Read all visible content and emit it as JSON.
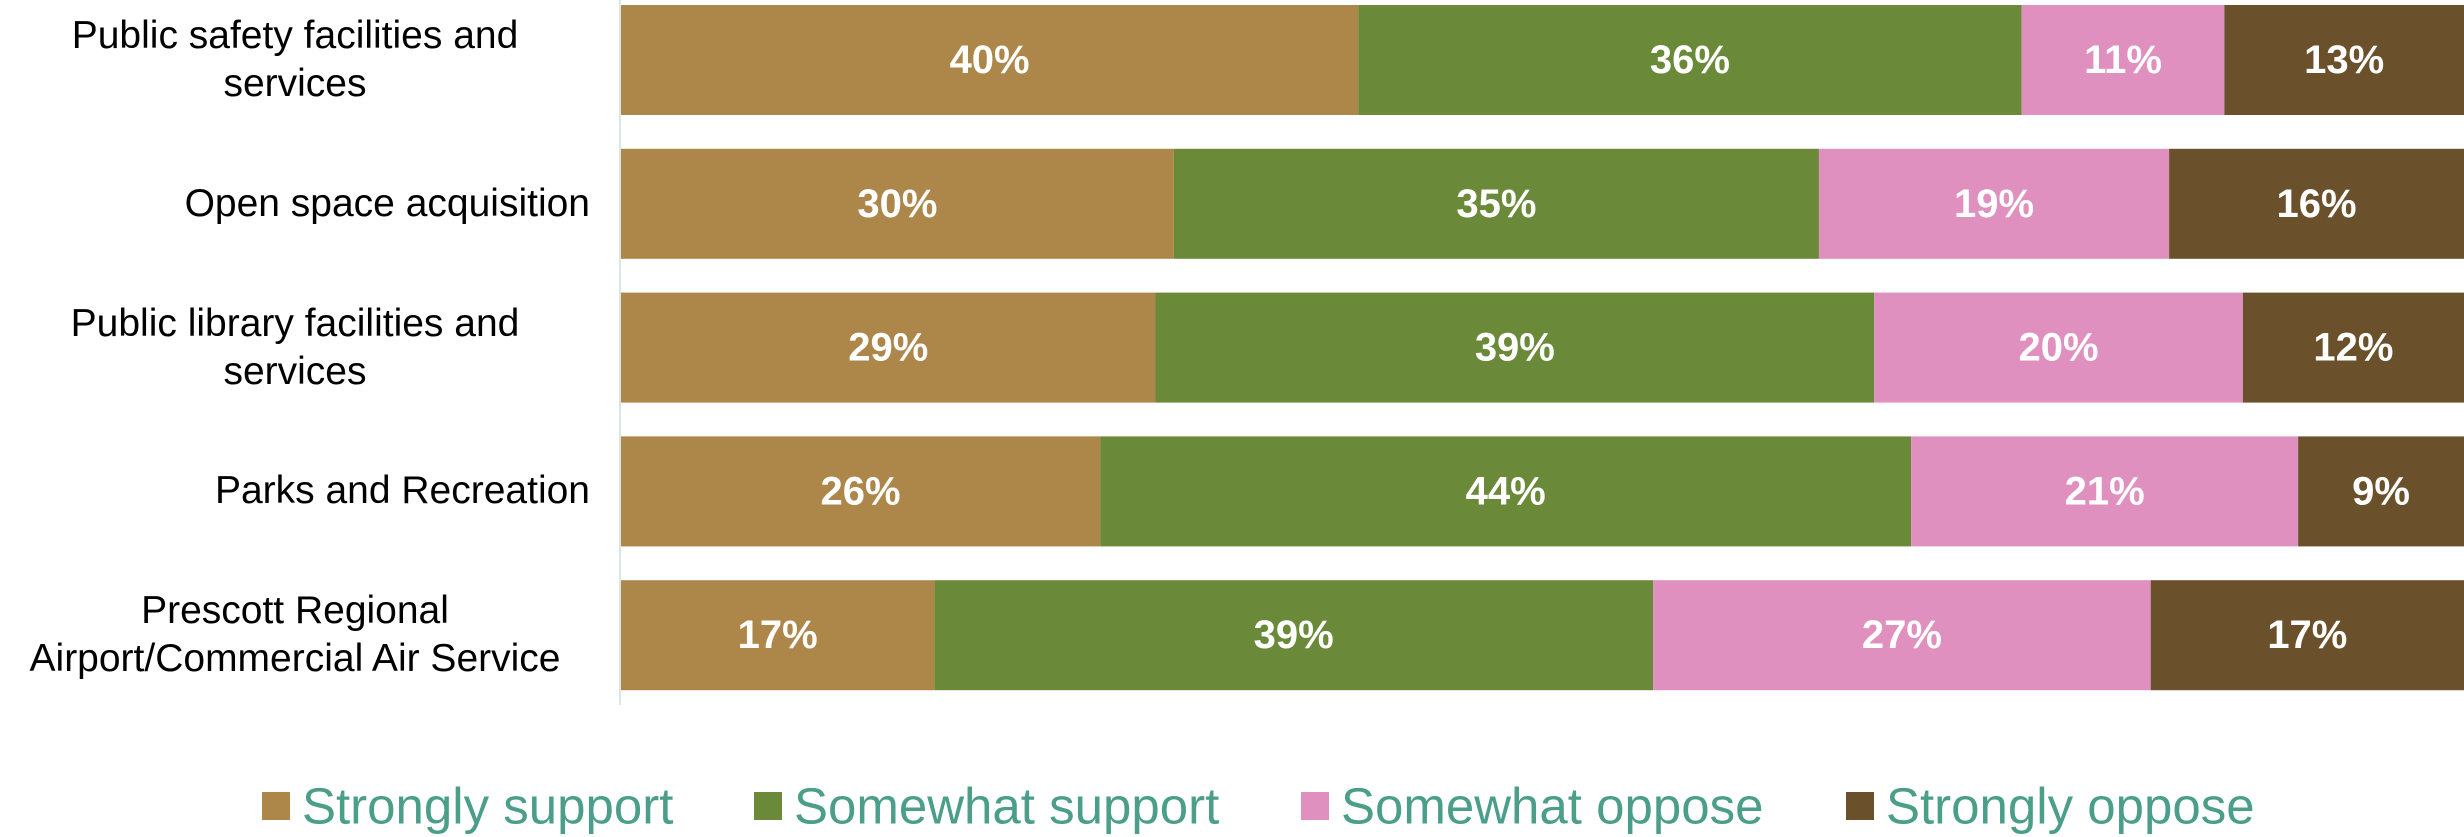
{
  "chart_data": {
    "type": "stacked-barh",
    "categories": [
      "Public safety facilities and services",
      "Open space acquisition",
      "Public library facilities and services",
      "Parks and Recreation",
      "Prescott Regional Airport/Commercial Air Service"
    ],
    "series": [
      {
        "name": "Strongly support",
        "color": "#ad864a",
        "values": [
          40,
          30,
          29,
          26,
          17
        ],
        "value_labels": [
          "40%",
          "30%",
          "29%",
          "26%",
          "17%"
        ]
      },
      {
        "name": "Somewhat support",
        "color": "#6a8a3a",
        "values": [
          36,
          35,
          39,
          44,
          39
        ],
        "value_labels": [
          "36%",
          "35%",
          "39%",
          "44%",
          "39%"
        ]
      },
      {
        "name": "Somewhat oppose",
        "color": "#e090bf",
        "values": [
          11,
          19,
          20,
          21,
          27
        ],
        "value_labels": [
          "11%",
          "19%",
          "20%",
          "21%",
          "27%"
        ]
      },
      {
        "name": "Strongly oppose",
        "color": "#6b512b",
        "values": [
          13,
          16,
          12,
          9,
          17
        ],
        "value_labels": [
          "13%",
          "16%",
          "12%",
          "9%",
          "17%"
        ]
      }
    ],
    "xlim": [
      0,
      100
    ],
    "legend": "bottom"
  }
}
